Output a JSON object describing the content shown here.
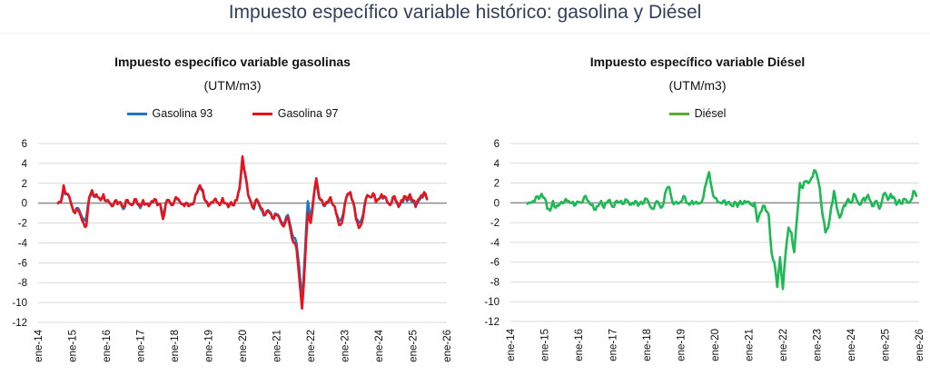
{
  "header": {
    "title": "Impuesto específico variable histórico: gasolina y Diésel"
  },
  "chart_data": [
    {
      "type": "line",
      "title": "Impuesto específico variable gasolinas",
      "subtitle": "(UTM/m3)",
      "xlabel": "",
      "ylabel": "",
      "ylim": [
        -12,
        6
      ],
      "yticks": [
        6,
        4,
        2,
        0,
        -2,
        -4,
        -6,
        -8,
        -10,
        -12
      ],
      "xticks": [
        "ene-14",
        "ene-15",
        "ene-16",
        "ene-17",
        "ene-18",
        "ene-19",
        "ene-20",
        "ene-21",
        "ene-22",
        "ene-23",
        "ene-24",
        "ene-25",
        "ene-26"
      ],
      "x_unit": "months since ene-14",
      "xlim": [
        0,
        144
      ],
      "grid": true,
      "legend": "top-center",
      "series": [
        {
          "name": "Gasolina 93",
          "color": "#1f77c8",
          "start_month": 7,
          "values": [
            0.0,
            0.1,
            1.4,
            0.9,
            0.6,
            -0.4,
            -1.0,
            -0.5,
            -1.1,
            -1.6,
            -1.4,
            0.5,
            1.1,
            0.6,
            0.6,
            0.3,
            0.8,
            0.2,
            0.1,
            -0.3,
            0.2,
            -0.1,
            0.1,
            -0.6,
            0.2,
            0.0,
            -0.2,
            0.3,
            -0.1,
            -0.5,
            0.3,
            -0.1,
            -0.3,
            0.1,
            0.4,
            -0.2,
            -0.1,
            -1.1,
            0.0,
            0.3,
            -0.2,
            0.2,
            0.4,
            0.1,
            -0.1,
            0.0,
            -0.3,
            -0.1,
            0.2,
            1.0,
            1.6,
            1.2,
            0.2,
            -0.3,
            0.1,
            0.3,
            0.1,
            -0.2,
            0.5,
            0.0,
            -0.4,
            0.1,
            -0.2,
            0.3,
            1.5,
            4.4,
            2.8,
            0.8,
            0.1,
            -0.6,
            0.3,
            -0.3,
            -0.8,
            -1.2,
            -0.7,
            -1.0,
            -1.5,
            -1.1,
            -1.4,
            -2.0,
            -1.8,
            -1.2,
            -2.4,
            -3.5,
            -4.0,
            -6.5,
            -9.8,
            -5.0,
            0.2,
            -1.5,
            0.5,
            2.0,
            0.5,
            0.3,
            -0.3,
            0.0,
            0.5,
            -0.2,
            -1.0,
            -1.8,
            -1.5,
            -0.2,
            0.8,
            1.0,
            0.1,
            -1.5,
            -2.0,
            -1.6,
            -0.2,
            0.8,
            0.6,
            0.9,
            0.1,
            0.4,
            0.8,
            0.6,
            0.1,
            -0.1,
            0.5,
            0.2,
            -0.4,
            0.2,
            0.5,
            0.2,
            0.6,
            0.1,
            -0.4,
            0.2,
            0.7,
            0.9,
            0.4
          ]
        },
        {
          "name": "Gasolina 97",
          "color": "#e8141c",
          "start_month": 7,
          "values": [
            0.0,
            0.1,
            1.8,
            0.9,
            0.6,
            -0.4,
            -1.0,
            -0.7,
            -1.3,
            -2.0,
            -2.3,
            0.6,
            1.3,
            0.7,
            0.6,
            0.3,
            0.9,
            0.2,
            0.1,
            -0.3,
            0.2,
            -0.1,
            0.1,
            -0.4,
            0.3,
            0.0,
            -0.2,
            0.4,
            -0.1,
            -0.3,
            0.3,
            -0.1,
            -0.3,
            0.2,
            0.4,
            -0.2,
            -0.1,
            -1.6,
            0.0,
            0.3,
            -0.2,
            0.2,
            0.5,
            0.1,
            -0.1,
            0.0,
            -0.3,
            -0.1,
            0.2,
            1.1,
            1.8,
            1.3,
            0.2,
            -0.3,
            0.1,
            0.3,
            0.1,
            -0.2,
            0.5,
            0.0,
            -0.4,
            0.1,
            -0.2,
            0.3,
            1.6,
            4.7,
            2.9,
            0.8,
            0.1,
            -0.5,
            0.4,
            -0.2,
            -0.6,
            -1.2,
            -0.8,
            -1.1,
            -1.6,
            -1.2,
            -1.5,
            -2.2,
            -2.0,
            -1.4,
            -2.8,
            -4.0,
            -4.5,
            -7.5,
            -10.6,
            -6.0,
            -1.0,
            -2.0,
            0.3,
            2.5,
            0.6,
            0.3,
            -0.2,
            0.1,
            0.6,
            -0.2,
            -1.0,
            -2.2,
            -2.0,
            -0.2,
            0.9,
            1.1,
            0.1,
            -1.6,
            -2.5,
            -2.0,
            -0.3,
            0.8,
            0.6,
            1.0,
            0.1,
            0.4,
            0.9,
            0.7,
            0.1,
            -0.2,
            0.6,
            0.3,
            -0.3,
            0.3,
            0.7,
            0.3,
            0.9,
            0.3,
            -0.3,
            0.4,
            0.8,
            1.1,
            0.4
          ]
        }
      ]
    },
    {
      "type": "line",
      "title": "Impuesto específico variable Diésel",
      "subtitle": "(UTM/m3)",
      "xlabel": "",
      "ylabel": "",
      "ylim": [
        -12,
        6
      ],
      "yticks": [
        6,
        4,
        2,
        0,
        -2,
        -4,
        -6,
        -8,
        -10,
        -12
      ],
      "xticks": [
        "ene-14",
        "ene-15",
        "ene-16",
        "ene-17",
        "ene-18",
        "ene-19",
        "ene-20",
        "ene-21",
        "ene-22",
        "ene-23",
        "ene-24",
        "ene-25",
        "ene-26"
      ],
      "x_unit": "months since ene-14",
      "xlim": [
        0,
        144
      ],
      "grid": true,
      "legend": "top-center",
      "series": [
        {
          "name": "Diésel",
          "color": "#1db954",
          "start_month": 6,
          "values": [
            -0.1,
            0.0,
            0.2,
            0.6,
            0.4,
            0.9,
            0.5,
            -0.6,
            -0.8,
            0.2,
            -0.5,
            -0.3,
            0.1,
            0.1,
            0.2,
            0.0,
            0.1,
            -0.2,
            0.1,
            0.0,
            0.6,
            0.3,
            -0.1,
            -0.2,
            -0.7,
            -0.3,
            0.2,
            -0.5,
            0.0,
            0.3,
            -0.4,
            0.1,
            0.0,
            0.2,
            -0.1,
            0.3,
            -0.2,
            0.0,
            0.2,
            -0.3,
            0.1,
            0.0,
            0.4,
            -0.2,
            -0.6,
            -0.1,
            0.1,
            -0.5,
            0.0,
            1.4,
            1.6,
            0.2,
            0.0,
            -0.1,
            0.1,
            0.7,
            0.0,
            -0.2,
            0.2,
            0.0,
            -0.1,
            0.0,
            0.6,
            2.0,
            3.1,
            1.4,
            0.5,
            0.1,
            0.0,
            0.2,
            -0.2,
            0.1,
            -0.3,
            0.1,
            -0.4,
            0.2,
            -0.1,
            0.0,
            0.1,
            -0.2,
            0.0,
            -1.9,
            -1.0,
            -0.3,
            -0.8,
            -1.2,
            -5.0,
            -6.0,
            -8.5,
            -5.5,
            -8.7,
            -5.0,
            -2.5,
            -3.0,
            -5.0,
            -1.5,
            2.0,
            1.5,
            2.2,
            2.0,
            2.5,
            3.3,
            2.8,
            1.5,
            -1.3,
            -3.0,
            -2.5,
            -0.5,
            1.2,
            -0.5,
            -1.5,
            -0.7,
            -0.3,
            0.4,
            0.0,
            0.9,
            0.3,
            -0.2,
            0.3,
            0.2,
            0.8,
            0.1,
            -0.3,
            0.2,
            -0.6,
            0.3,
            1.0,
            0.3,
            0.9,
            0.6,
            -0.2,
            0.3,
            -0.1,
            0.4,
            0.0,
            0.2,
            1.2,
            0.7
          ]
        }
      ]
    }
  ]
}
